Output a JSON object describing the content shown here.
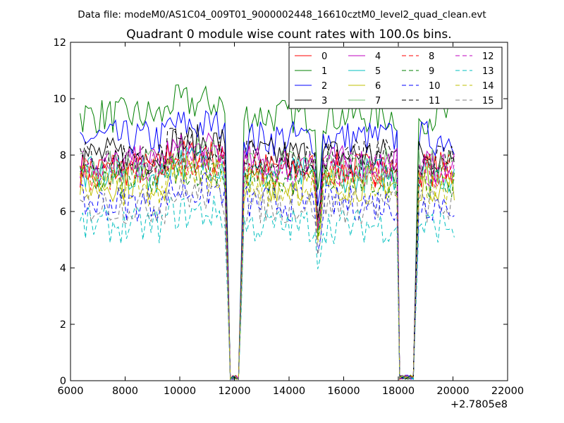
{
  "figure": {
    "header": "Data file: modeM0/AS1C04_009T01_9000002448_16610cztM0_level2_quad_clean.evt"
  },
  "chart_data": {
    "type": "line",
    "title": "Quadrant 0 module wise count rates with 100.0s bins.",
    "xlabel": "",
    "ylabel": "",
    "x_offset_label": "+2.7805e8",
    "xlim": [
      6000,
      22000
    ],
    "ylim": [
      0,
      12
    ],
    "xticks": [
      6000,
      8000,
      10000,
      12000,
      14000,
      16000,
      18000,
      20000,
      22000
    ],
    "yticks": [
      0,
      2,
      4,
      6,
      8,
      10,
      12
    ],
    "grid": false,
    "legend": {
      "position": "upper right",
      "columns": 4
    },
    "segments": [
      [
        6350,
        11650
      ],
      [
        11950,
        12050
      ],
      [
        12350,
        14950
      ],
      [
        15250,
        17950
      ],
      [
        18050,
        18550
      ],
      [
        18750,
        20050
      ]
    ],
    "gap_points": [
      11750,
      11850,
      12150,
      12250,
      15050,
      15150,
      18650
    ],
    "series": [
      {
        "name": "0",
        "color": "#ff0000",
        "dash": "solid",
        "level": 7.5
      },
      {
        "name": "1",
        "color": "#008000",
        "dash": "solid",
        "level": 9.4
      },
      {
        "name": "2",
        "color": "#0000ff",
        "dash": "solid",
        "level": 8.6
      },
      {
        "name": "3",
        "color": "#000000",
        "dash": "solid",
        "level": 8.0
      },
      {
        "name": "4",
        "color": "#bf00bf",
        "dash": "solid",
        "level": 7.7
      },
      {
        "name": "5",
        "color": "#00bfbf",
        "dash": "solid",
        "level": 7.3
      },
      {
        "name": "6",
        "color": "#bfbf00",
        "dash": "solid",
        "level": 7.0
      },
      {
        "name": "7",
        "color": "#6fbf6f",
        "dash": "solid",
        "level": 7.6
      },
      {
        "name": "8",
        "color": "#ff0000",
        "dash": "dashed",
        "level": 7.4
      },
      {
        "name": "9",
        "color": "#008000",
        "dash": "dashed",
        "level": 7.1
      },
      {
        "name": "10",
        "color": "#0000ff",
        "dash": "dashed",
        "level": 6.3
      },
      {
        "name": "11",
        "color": "#000000",
        "dash": "dashed",
        "level": 7.9
      },
      {
        "name": "12",
        "color": "#bf00bf",
        "dash": "dashed",
        "level": 7.5
      },
      {
        "name": "13",
        "color": "#00bfbf",
        "dash": "dashed",
        "level": 5.5
      },
      {
        "name": "14",
        "color": "#bfbf00",
        "dash": "dashed",
        "level": 6.8
      },
      {
        "name": "15",
        "color": "#808080",
        "dash": "dashed",
        "level": 6.2
      }
    ]
  }
}
